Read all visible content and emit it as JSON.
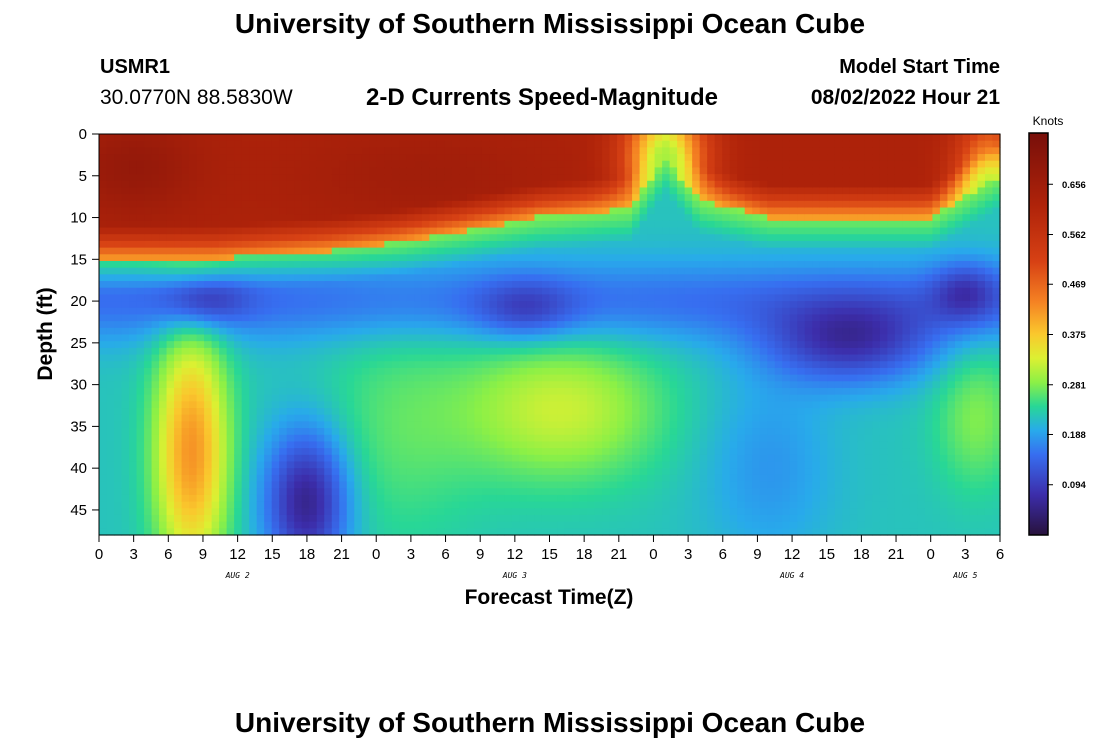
{
  "header": {
    "title": "University of Southern Mississippi Ocean Cube",
    "station_id": "USMR1",
    "station_coords": "30.0770N  88.5830W",
    "subtitle": "2-D Currents Speed-Magnitude",
    "start_label": "Model Start Time",
    "start_value": "08/02/2022 Hour 21"
  },
  "footer": {
    "title": "University of Southern Mississippi Ocean Cube"
  },
  "chart_data": {
    "type": "heatmap",
    "title": "2-D Currents Speed-Magnitude",
    "xlabel": "Forecast Time(Z)",
    "ylabel": "Depth (ft)",
    "x_range_hours": [
      0,
      78
    ],
    "y_range_ft": [
      0,
      48
    ],
    "x_ticks": [
      "0",
      "3",
      "6",
      "9",
      "12",
      "15",
      "18",
      "21",
      "0",
      "3",
      "6",
      "9",
      "12",
      "15",
      "18",
      "21",
      "0",
      "3",
      "6",
      "9",
      "12",
      "15",
      "18",
      "21",
      "0",
      "3",
      "6"
    ],
    "y_ticks": [
      0,
      5,
      10,
      15,
      20,
      25,
      30,
      35,
      40,
      45
    ],
    "day_labels": [
      {
        "text": "AUG 2",
        "hour": 12
      },
      {
        "text": "AUG 3",
        "hour": 36
      },
      {
        "text": "AUG 4",
        "hour": 60
      },
      {
        "text": "AUG 5",
        "hour": 75
      }
    ],
    "colorbar": {
      "unit": "Knots",
      "min": 0.0,
      "max": 0.75,
      "tick_labels": [
        "0.656",
        "0.562",
        "0.469",
        "0.375",
        "0.281",
        "0.188",
        "0.094"
      ],
      "tick_values": [
        0.656,
        0.562,
        0.469,
        0.375,
        0.281,
        0.188,
        0.094
      ]
    },
    "features": [
      {
        "desc": "surface fast layer",
        "hours": [
          0,
          28
        ],
        "depth_ft": [
          0,
          15
        ],
        "knots": 0.63
      },
      {
        "desc": "surface fast layer",
        "hours": [
          28,
          46
        ],
        "depth_ft": [
          0,
          10
        ],
        "knots": 0.63
      },
      {
        "desc": "surface fast layer",
        "hours": [
          52,
          72
        ],
        "depth_ft": [
          0,
          10
        ],
        "knots": 0.62
      },
      {
        "desc": "surface slack",
        "hours": [
          48,
          52
        ],
        "depth_ft": [
          0,
          5
        ],
        "knots": 0.32
      },
      {
        "desc": "slow band",
        "hours": [
          0,
          78
        ],
        "depth_ft": [
          16,
          24
        ],
        "knots": 0.14
      },
      {
        "desc": "slow minimum",
        "hours": [
          60,
          71
        ],
        "depth_ft": [
          20,
          29
        ],
        "knots": 0.04
      },
      {
        "desc": "deep fast column",
        "hours": [
          6,
          10
        ],
        "depth_ft": [
          26,
          48
        ],
        "knots": 0.4
      },
      {
        "desc": "deep moderate region",
        "hours": [
          36,
          46
        ],
        "depth_ft": [
          28,
          40
        ],
        "knots": 0.31
      },
      {
        "desc": "deep slow column",
        "hours": [
          14,
          20
        ],
        "depth_ft": [
          35,
          48
        ],
        "knots": 0.08
      }
    ],
    "grid": false,
    "legend": "right"
  }
}
